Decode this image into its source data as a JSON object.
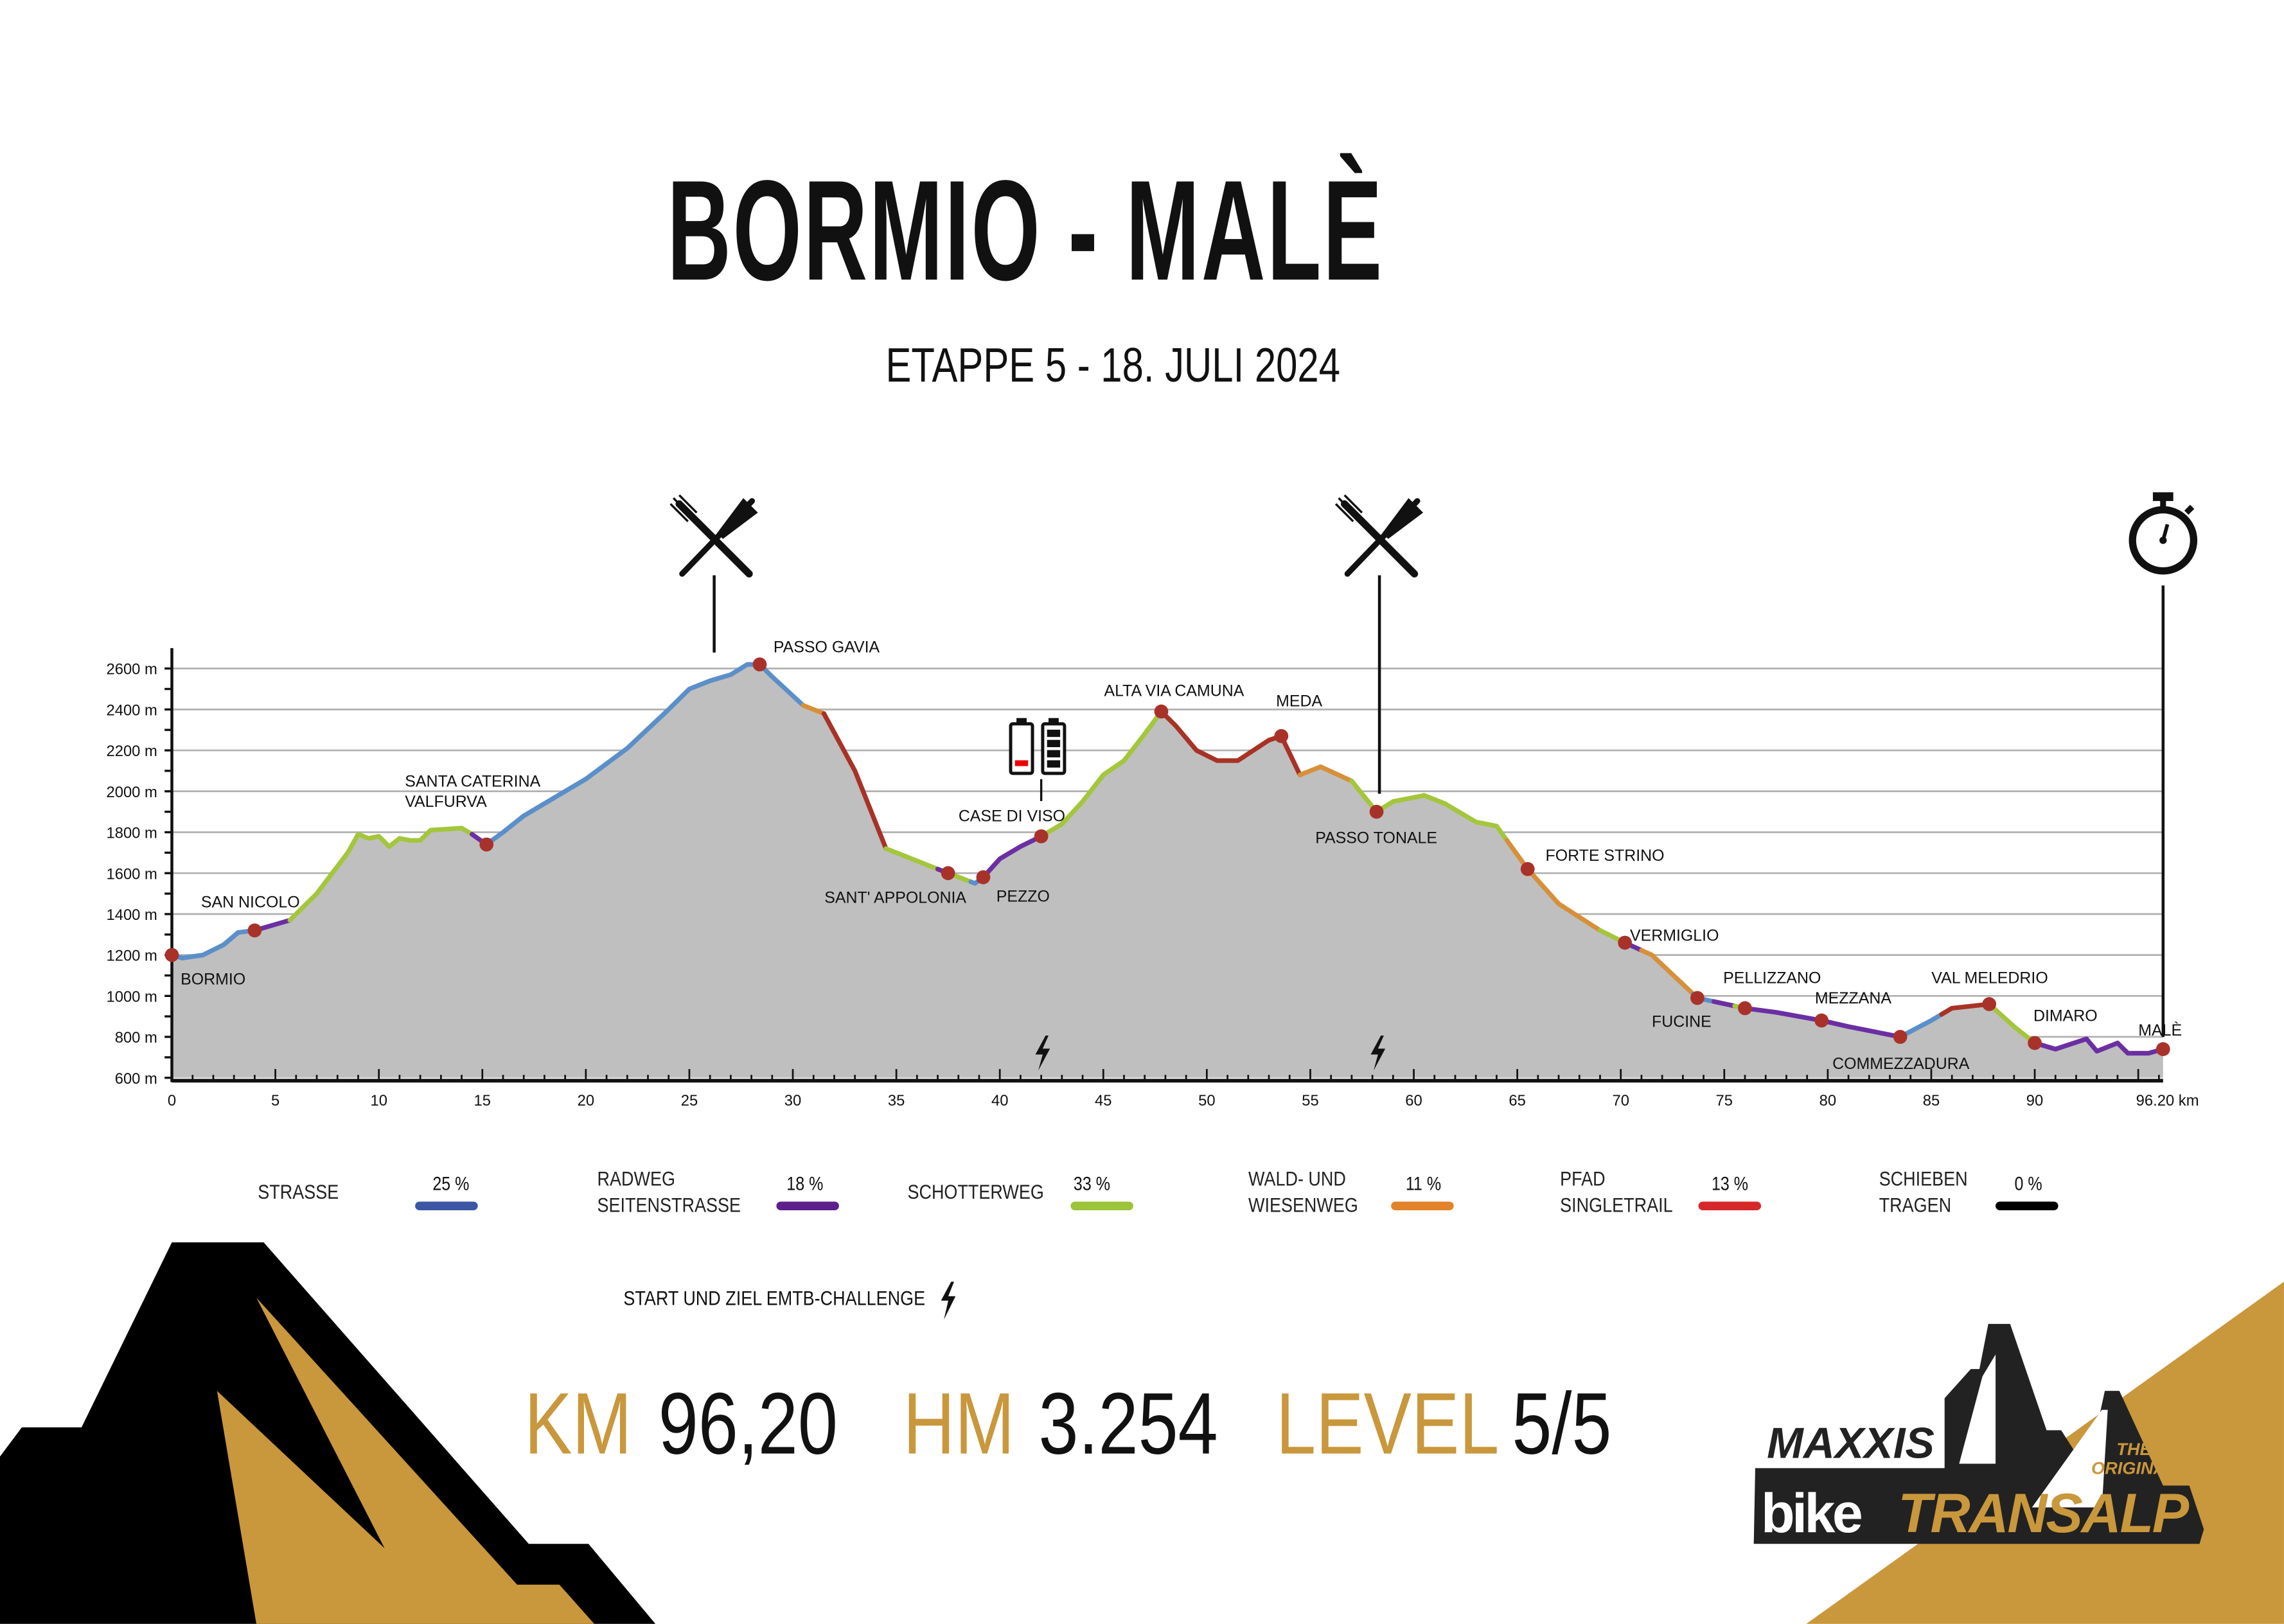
{
  "title": "BORMIO - MALÈ",
  "subtitle": "ETAPPE 5 - 18. JULI 2024",
  "chart_data": {
    "type": "area",
    "title": "BORMIO - MALÈ",
    "xlabel": "km",
    "ylabel": "m",
    "xlim": [
      0,
      96.2
    ],
    "ylim": [
      600,
      2600
    ],
    "grid": true,
    "x_ticks": [
      0,
      5,
      10,
      15,
      20,
      25,
      30,
      35,
      40,
      45,
      50,
      55,
      60,
      65,
      70,
      75,
      80,
      85,
      90
    ],
    "x_end_label": "96.20 km",
    "y_ticks": [
      600,
      800,
      1000,
      1200,
      1400,
      1600,
      1800,
      2000,
      2200,
      2400,
      2600
    ],
    "y_tick_suffix": " m",
    "profile": [
      [
        0,
        1200
      ],
      [
        0.5,
        1185
      ],
      [
        1.5,
        1200
      ],
      [
        2.5,
        1250
      ],
      [
        3.2,
        1310
      ],
      [
        4,
        1320
      ],
      [
        5.7,
        1370
      ],
      [
        7,
        1500
      ],
      [
        8.5,
        1700
      ],
      [
        9,
        1790
      ],
      [
        9.5,
        1770
      ],
      [
        10,
        1780
      ],
      [
        10.5,
        1730
      ],
      [
        11,
        1770
      ],
      [
        11.5,
        1760
      ],
      [
        12,
        1760
      ],
      [
        12.5,
        1810
      ],
      [
        14,
        1820
      ],
      [
        14.5,
        1790
      ],
      [
        15.2,
        1740
      ],
      [
        16,
        1800
      ],
      [
        17,
        1880
      ],
      [
        20,
        2060
      ],
      [
        22,
        2210
      ],
      [
        24,
        2400
      ],
      [
        25,
        2500
      ],
      [
        26,
        2540
      ],
      [
        27,
        2570
      ],
      [
        27.8,
        2620
      ],
      [
        28.4,
        2620
      ],
      [
        29,
        2560
      ],
      [
        30.5,
        2420
      ],
      [
        31.5,
        2380
      ],
      [
        33,
        2100
      ],
      [
        34.5,
        1720
      ],
      [
        35.5,
        1680
      ],
      [
        37.5,
        1600
      ],
      [
        38.8,
        1550
      ],
      [
        39.2,
        1580
      ],
      [
        40,
        1670
      ],
      [
        41,
        1730
      ],
      [
        42,
        1780
      ],
      [
        43,
        1840
      ],
      [
        44,
        1950
      ],
      [
        45,
        2080
      ],
      [
        46,
        2150
      ],
      [
        47,
        2280
      ],
      [
        47.8,
        2390
      ],
      [
        48.5,
        2320
      ],
      [
        49.5,
        2200
      ],
      [
        50.5,
        2150
      ],
      [
        51.5,
        2150
      ],
      [
        53,
        2250
      ],
      [
        53.6,
        2270
      ],
      [
        54.5,
        2080
      ],
      [
        55.5,
        2120
      ],
      [
        57,
        2050
      ],
      [
        58.2,
        1900
      ],
      [
        59,
        1950
      ],
      [
        60.5,
        1980
      ],
      [
        61.5,
        1940
      ],
      [
        63,
        1850
      ],
      [
        64,
        1830
      ],
      [
        65.5,
        1620
      ],
      [
        67,
        1450
      ],
      [
        69,
        1320
      ],
      [
        70.2,
        1260
      ],
      [
        71.5,
        1200
      ],
      [
        73.7,
        990
      ],
      [
        76,
        940
      ],
      [
        77.5,
        920
      ],
      [
        79.7,
        880
      ],
      [
        81,
        850
      ],
      [
        83.5,
        800
      ],
      [
        85,
        880
      ],
      [
        86,
        940
      ],
      [
        87.8,
        960
      ],
      [
        89,
        850
      ],
      [
        90,
        770
      ],
      [
        91,
        740
      ],
      [
        92.5,
        790
      ],
      [
        93,
        730
      ],
      [
        94,
        770
      ],
      [
        94.5,
        720
      ],
      [
        95.5,
        720
      ],
      [
        96.2,
        740
      ]
    ],
    "segments": [
      {
        "from": 0,
        "to": 3.8,
        "type": "strasse"
      },
      {
        "from": 3.8,
        "to": 5.7,
        "type": "radweg"
      },
      {
        "from": 5.7,
        "to": 14.5,
        "type": "schotter"
      },
      {
        "from": 14.5,
        "to": 15.3,
        "type": "radweg"
      },
      {
        "from": 15.3,
        "to": 30.5,
        "type": "strasse"
      },
      {
        "from": 30.5,
        "to": 31.5,
        "type": "wald"
      },
      {
        "from": 31.5,
        "to": 34.5,
        "type": "pfad"
      },
      {
        "from": 34.5,
        "to": 37,
        "type": "schotter"
      },
      {
        "from": 37,
        "to": 37.5,
        "type": "radweg"
      },
      {
        "from": 37.5,
        "to": 38.6,
        "type": "schotter"
      },
      {
        "from": 38.6,
        "to": 39,
        "type": "strasse"
      },
      {
        "from": 39,
        "to": 42,
        "type": "radweg"
      },
      {
        "from": 42,
        "to": 47.8,
        "type": "schotter"
      },
      {
        "from": 47.8,
        "to": 54.5,
        "type": "pfad"
      },
      {
        "from": 54.5,
        "to": 57,
        "type": "wald"
      },
      {
        "from": 57,
        "to": 64.5,
        "type": "schotter"
      },
      {
        "from": 64.5,
        "to": 69,
        "type": "wald"
      },
      {
        "from": 69,
        "to": 70,
        "type": "schotter"
      },
      {
        "from": 70,
        "to": 71,
        "type": "radweg"
      },
      {
        "from": 71,
        "to": 73.5,
        "type": "wald"
      },
      {
        "from": 73.5,
        "to": 74.5,
        "type": "strasse"
      },
      {
        "from": 74.5,
        "to": 75.5,
        "type": "radweg"
      },
      {
        "from": 75.5,
        "to": 76,
        "type": "schotter"
      },
      {
        "from": 76,
        "to": 83.5,
        "type": "radweg"
      },
      {
        "from": 83.5,
        "to": 85.5,
        "type": "strasse"
      },
      {
        "from": 85.5,
        "to": 87.8,
        "type": "pfad"
      },
      {
        "from": 87.8,
        "to": 90,
        "type": "schotter"
      },
      {
        "from": 90,
        "to": 96.2,
        "type": "radweg"
      }
    ],
    "segment_colors": {
      "strasse": "#5b8fc9",
      "radweg": "#6b2fa3",
      "schotter": "#a4c63c",
      "wald": "#d6903a",
      "pfad": "#a83226"
    },
    "waypoints": [
      {
        "name": "BORMIO",
        "km": 0
      },
      {
        "name": "SAN NICOLO",
        "km": 4
      },
      {
        "name": "SANTA CATERINA",
        "name2": "VALFURVA",
        "km": 15.2
      },
      {
        "name": "PASSO GAVIA",
        "km": 28.4
      },
      {
        "name": "SANT' APPOLONIA",
        "km": 37.5
      },
      {
        "name": "PEZZO",
        "km": 39.2
      },
      {
        "name": "CASE DI VISO",
        "km": 42
      },
      {
        "name": "ALTA VIA CAMUNA",
        "km": 47.8
      },
      {
        "name": "MEDA",
        "km": 53.6
      },
      {
        "name": "PASSO TONALE",
        "km": 58.2
      },
      {
        "name": "FORTE STRINO",
        "km": 65.5
      },
      {
        "name": "VERMIGLIO",
        "km": 70.2
      },
      {
        "name": "FUCINE",
        "km": 73.7
      },
      {
        "name": "PELLIZZANO",
        "km": 76
      },
      {
        "name": "MEZZANA",
        "km": 79.7
      },
      {
        "name": "COMMEZZADURA",
        "km": 83.5
      },
      {
        "name": "VAL MELEDRIO",
        "km": 87.8
      },
      {
        "name": "DIMARO",
        "km": 90
      },
      {
        "name": "MALÈ",
        "km": 96.2
      }
    ],
    "aid_stations_km": [
      26.2,
      58.2
    ],
    "finish_km": 96.2,
    "emtb_km": [
      42,
      58.2
    ],
    "battery_km": 42,
    "marker_color": "#a8322a",
    "fill_color": "#bfbfbf"
  },
  "legend": [
    {
      "lines": [
        "STRASSE"
      ],
      "percent": "25 %",
      "color": "#3c55a5"
    },
    {
      "lines": [
        "RADWEG",
        "SEITENSTRASSE"
      ],
      "percent": "18 %",
      "color": "#5c1f8c"
    },
    {
      "lines": [
        "SCHOTTERWEG"
      ],
      "percent": "33 %",
      "color": "#9cc43a"
    },
    {
      "lines": [
        "WALD- UND",
        "WIESENWEG"
      ],
      "percent": "11 %",
      "color": "#e2832a"
    },
    {
      "lines": [
        "PFAD",
        "SINGLETRAIL"
      ],
      "percent": "13 %",
      "color": "#d62828"
    },
    {
      "lines": [
        "SCHIEBEN",
        "TRAGEN"
      ],
      "percent": "0 %",
      "color": "#000000"
    }
  ],
  "emtb_note": "START UND ZIEL EMTB-CHALLENGE",
  "stats": [
    {
      "label": "KM",
      "value": "96,20"
    },
    {
      "label": "HM",
      "value": "3.254"
    },
    {
      "label": "LEVEL",
      "value": "5/5"
    }
  ],
  "logo": {
    "brand": "MAXXIS",
    "tag1": "THE",
    "tag2": "ORIGINAL",
    "word1": "bike",
    "word2": "TRANSALP"
  },
  "colors": {
    "gold": "#c9973c",
    "black": "#000000"
  }
}
